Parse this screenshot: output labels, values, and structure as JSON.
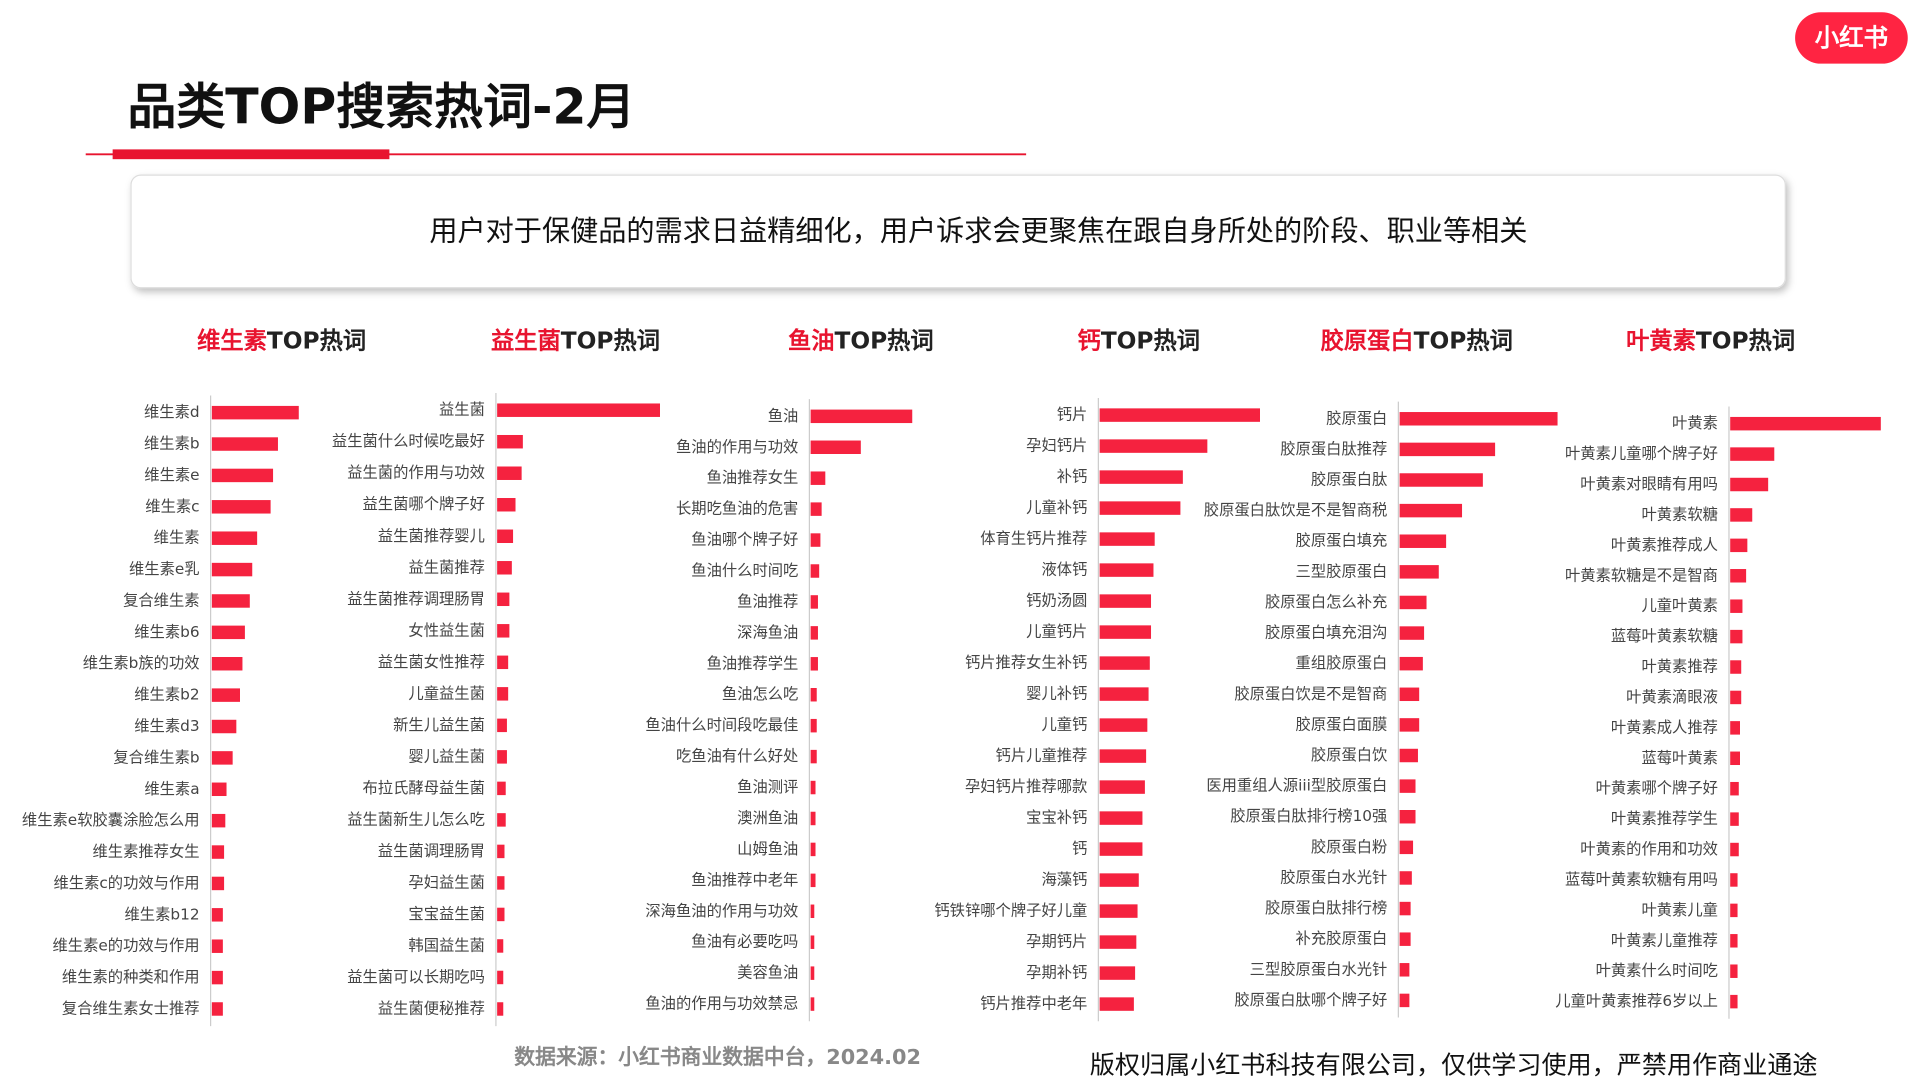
{
  "header": {
    "logo": "小红书",
    "title": "品类TOP搜索热词-2月"
  },
  "summary": "用户对于保健品的需求日益精细化，用户诉求会更聚焦在跟自身所处的阶段、职业等相关",
  "chart_data": [
    {
      "type": "bar",
      "title": {
        "highlight": "维生素",
        "rest": "TOP热词"
      },
      "color": "#f5223f",
      "categories": [
        "维生素d",
        "维生素b",
        "维生素e",
        "维生素c",
        "维生素",
        "维生素e乳",
        "复合维生素",
        "维生素b6",
        "维生素b族的功效",
        "维生素b2",
        "维生素d3",
        "复合维生素b",
        "维生素a",
        "维生素e软胶囊涂脸怎么用",
        "维生素推荐女生",
        "维生素c的功效与作用",
        "维生素b12",
        "维生素e的功效与作用",
        "维生素的种类和作用",
        "复合维生素女士推荐"
      ],
      "values": [
        71,
        54,
        50,
        48,
        37,
        33,
        31,
        27,
        25,
        23,
        20,
        17,
        12,
        11,
        10,
        10,
        9,
        9,
        9,
        9
      ]
    },
    {
      "type": "bar",
      "title": {
        "highlight": "益生菌",
        "rest": "TOP热词"
      },
      "color": "#f5223f",
      "categories": [
        "益生菌",
        "益生菌什么时候吃最好",
        "益生菌的作用与功效",
        "益生菌哪个牌子好",
        "益生菌推荐婴儿",
        "益生菌推荐",
        "益生菌推荐调理肠胃",
        "女性益生菌",
        "益生菌女性推荐",
        "儿童益生菌",
        "新生儿益生菌",
        "婴儿益生菌",
        "布拉氏酵母益生菌",
        "益生菌新生儿怎么吃",
        "益生菌调理肠胃",
        "孕妇益生菌",
        "宝宝益生菌",
        "韩国益生菌",
        "益生菌可以长期吃吗",
        "益生菌便秘推荐"
      ],
      "values": [
        133,
        21,
        20,
        15,
        13,
        12,
        10,
        10,
        9,
        9,
        8,
        8,
        7,
        7,
        6,
        6,
        6,
        5,
        5,
        5
      ]
    },
    {
      "type": "bar",
      "title": {
        "highlight": "鱼油",
        "rest": "TOP热词"
      },
      "color": "#f5223f",
      "categories": [
        "鱼油",
        "鱼油的作用与功效",
        "鱼油推荐女生",
        "长期吃鱼油的危害",
        "鱼油哪个牌子好",
        "鱼油什么时间吃",
        "鱼油推荐",
        "深海鱼油",
        "鱼油推荐学生",
        "鱼油怎么吃",
        "鱼油什么时间段吃最佳",
        "吃鱼油有什么好处",
        "鱼油测评",
        "澳洲鱼油",
        "山姆鱼油",
        "鱼油推荐中老年",
        "深海鱼油的作用与功效",
        "鱼油有必要吃吗",
        "美容鱼油",
        "鱼油的作用与功效禁忌"
      ],
      "values": [
        83,
        41,
        12,
        9,
        8,
        7,
        6,
        6,
        6,
        5,
        5,
        5,
        4,
        4,
        4,
        4,
        3,
        3,
        3,
        3
      ]
    },
    {
      "type": "bar",
      "title": {
        "highlight": "钙",
        "rest": "TOP热词"
      },
      "color": "#f5223f",
      "categories": [
        "钙片",
        "孕妇钙片",
        "补钙",
        "儿童补钙",
        "体育生钙片推荐",
        "液体钙",
        "钙奶汤圆",
        "儿童钙片",
        "钙片推荐女生补钙",
        "婴儿补钙",
        "儿童钙",
        "钙片儿童推荐",
        "孕妇钙片推荐哪款",
        "宝宝补钙",
        "钙",
        "海藻钙",
        "钙铁锌哪个牌子好儿童",
        "孕期钙片",
        "孕期补钙",
        "钙片推荐中老年"
      ],
      "values": [
        131,
        88,
        68,
        66,
        45,
        44,
        42,
        42,
        41,
        40,
        39,
        38,
        37,
        35,
        35,
        32,
        31,
        30,
        29,
        28
      ]
    },
    {
      "type": "bar",
      "title": {
        "highlight": "胶原蛋白",
        "rest": "TOP热词"
      },
      "color": "#f5223f",
      "categories": [
        "胶原蛋白",
        "胶原蛋白肽推荐",
        "胶原蛋白肽",
        "胶原蛋白肽饮是不是智商税",
        "胶原蛋白填充",
        "三型胶原蛋白",
        "胶原蛋白怎么补充",
        "胶原蛋白填充泪沟",
        "重组胶原蛋白",
        "胶原蛋白饮是不是智商",
        "胶原蛋白面膜",
        "胶原蛋白饮",
        "医用重组人源iii型胶原蛋白",
        "胶原蛋白肽排行榜10强",
        "胶原蛋白粉",
        "胶原蛋白水光针",
        "胶原蛋白肽排行榜",
        "补充胶原蛋白",
        "三型胶原蛋白水光针",
        "胶原蛋白肽哪个牌子好"
      ],
      "values": [
        129,
        78,
        68,
        51,
        38,
        32,
        22,
        20,
        19,
        16,
        16,
        15,
        13,
        13,
        11,
        10,
        9,
        9,
        8,
        8
      ]
    },
    {
      "type": "bar",
      "title": {
        "highlight": "叶黄素",
        "rest": "TOP热词"
      },
      "color": "#f5223f",
      "categories": [
        "叶黄素",
        "叶黄素儿童哪个牌子好",
        "叶黄素对眼睛有用吗",
        "叶黄素软糖",
        "叶黄素推荐成人",
        "叶黄素软糖是不是智商",
        "儿童叶黄素",
        "蓝莓叶黄素软糖",
        "叶黄素推荐",
        "叶黄素滴眼液",
        "叶黄素成人推荐",
        "蓝莓叶黄素",
        "叶黄素哪个牌子好",
        "叶黄素推荐学生",
        "叶黄素的作用和功效",
        "蓝莓叶黄素软糖有用吗",
        "叶黄素儿童",
        "叶黄素儿童推荐",
        "叶黄素什么时间吃",
        "儿童叶黄素推荐6岁以上"
      ],
      "values": [
        123,
        36,
        31,
        18,
        14,
        13,
        10,
        10,
        9,
        9,
        8,
        8,
        7,
        7,
        7,
        6,
        6,
        6,
        6,
        6
      ]
    }
  ],
  "footer": {
    "source": "数据来源：小红书商业数据中台，2024.02",
    "copyright": "版权归属小红书科技有限公司，仅供学习使用，严禁用作商业通途"
  }
}
